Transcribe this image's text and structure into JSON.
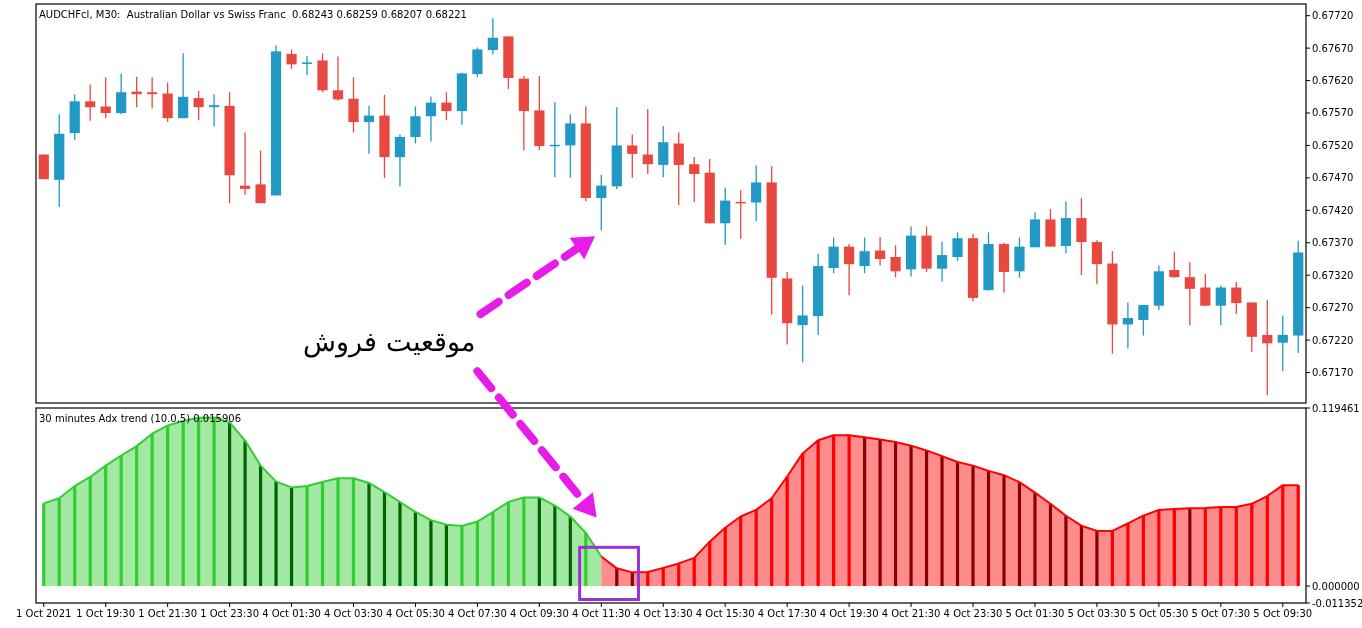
{
  "chart_data": [
    {
      "type": "candlestick",
      "title": "AUDCHFcl, M30:  Australian Dollar vs Swiss Franc  0.68243 0.68259 0.68207 0.68221",
      "categories": [
        null,
        null,
        null,
        null,
        null,
        null,
        null,
        null,
        null,
        null,
        null,
        null,
        null,
        null,
        null,
        null,
        null,
        null,
        null,
        null,
        null,
        null,
        null,
        null,
        null,
        null,
        null,
        null,
        null,
        null,
        null,
        null,
        null,
        null,
        null,
        null,
        null,
        null,
        null,
        null,
        null,
        null,
        null,
        null,
        null,
        null,
        null,
        null,
        null,
        null,
        null,
        null,
        null,
        null,
        null,
        null,
        null,
        null,
        null,
        null,
        null,
        null,
        null,
        null,
        null,
        null,
        null,
        null,
        null,
        null,
        null,
        null,
        null,
        null,
        null,
        null,
        null,
        null,
        null,
        null,
        null,
        null
      ],
      "ylim": [
        0.67123,
        0.67738
      ],
      "yticks": [
        {
          "value": 0.6772,
          "label": "0.67720"
        },
        {
          "value": 0.6767,
          "label": "0.67670"
        },
        {
          "value": 0.6762,
          "label": "0.67620"
        },
        {
          "value": 0.6757,
          "label": "0.67570"
        },
        {
          "value": 0.6752,
          "label": "0.67520"
        },
        {
          "value": 0.6747,
          "label": "0.67470"
        },
        {
          "value": 0.6742,
          "label": "0.67420"
        },
        {
          "value": 0.6737,
          "label": "0.67370"
        },
        {
          "value": 0.6732,
          "label": "0.67320"
        },
        {
          "value": 0.6727,
          "label": "0.67270"
        },
        {
          "value": 0.6722,
          "label": "0.67220"
        },
        {
          "value": 0.6717,
          "label": "0.67170"
        }
      ],
      "ohlc": [
        [
          0.67506,
          0.67506,
          0.67468,
          0.67468
        ],
        [
          0.67467,
          0.67568,
          0.67425,
          0.67538
        ],
        [
          0.67539,
          0.67599,
          0.67528,
          0.67588
        ],
        [
          0.67588,
          0.67614,
          0.67558,
          0.67579
        ],
        [
          0.6758,
          0.67625,
          0.67562,
          0.6757
        ],
        [
          0.6757,
          0.67631,
          0.67568,
          0.67602
        ],
        [
          0.67603,
          0.67626,
          0.67579,
          0.67599
        ],
        [
          0.67602,
          0.67625,
          0.67577,
          0.67599
        ],
        [
          0.676,
          0.67617,
          0.67556,
          0.67562
        ],
        [
          0.67562,
          0.67662,
          0.67562,
          0.67595
        ],
        [
          0.67593,
          0.67604,
          0.67559,
          0.67579
        ],
        [
          0.67579,
          0.67599,
          0.67549,
          0.67582
        ],
        [
          0.67581,
          0.67602,
          0.67431,
          0.67474
        ],
        [
          0.67458,
          0.6754,
          0.67444,
          0.67453
        ],
        [
          0.6746,
          0.67512,
          0.67431,
          0.67431
        ],
        [
          0.67443,
          0.67674,
          0.67443,
          0.67665
        ],
        [
          0.67661,
          0.67668,
          0.67638,
          0.67645
        ],
        [
          0.67647,
          0.67658,
          0.67628,
          0.67648
        ],
        [
          0.67651,
          0.67662,
          0.67602,
          0.67605
        ],
        [
          0.67605,
          0.67657,
          0.67589,
          0.67591
        ],
        [
          0.67592,
          0.67625,
          0.6754,
          0.67556
        ],
        [
          0.67556,
          0.67581,
          0.67507,
          0.67566
        ],
        [
          0.67566,
          0.67598,
          0.6747,
          0.67502
        ],
        [
          0.67502,
          0.67537,
          0.67457,
          0.67533
        ],
        [
          0.67533,
          0.6758,
          0.67523,
          0.67565
        ],
        [
          0.67565,
          0.67595,
          0.67526,
          0.67586
        ],
        [
          0.67586,
          0.67602,
          0.67559,
          0.67573
        ],
        [
          0.67573,
          0.67632,
          0.67552,
          0.67631
        ],
        [
          0.6763,
          0.67671,
          0.67625,
          0.67668
        ],
        [
          0.67667,
          0.67716,
          0.6766,
          0.67686
        ],
        [
          0.67688,
          0.67688,
          0.67607,
          0.67624
        ],
        [
          0.67623,
          0.67627,
          0.67512,
          0.67573
        ],
        [
          0.67574,
          0.67627,
          0.67513,
          0.67519
        ],
        [
          0.6752,
          0.67587,
          0.67471,
          0.67521
        ],
        [
          0.6752,
          0.67568,
          0.6747,
          0.67554
        ],
        [
          0.67554,
          0.6758,
          0.67434,
          0.67439
        ],
        [
          0.67439,
          0.67475,
          0.67389,
          0.67458
        ],
        [
          0.67457,
          0.67579,
          0.67453,
          0.6752
        ],
        [
          0.6752,
          0.67537,
          0.6747,
          0.67507
        ],
        [
          0.67506,
          0.67576,
          0.67476,
          0.67491
        ],
        [
          0.6749,
          0.6755,
          0.67471,
          0.67525
        ],
        [
          0.67523,
          0.6754,
          0.67428,
          0.6749
        ],
        [
          0.67491,
          0.67502,
          0.67433,
          0.67476
        ],
        [
          0.67478,
          0.67499,
          0.674,
          0.674
        ],
        [
          0.674,
          0.67455,
          0.67367,
          0.67435
        ],
        [
          0.67433,
          0.67451,
          0.67376,
          0.67432
        ],
        [
          0.67432,
          0.67489,
          0.67403,
          0.67463
        ],
        [
          0.67463,
          0.67488,
          0.67259,
          0.67316
        ],
        [
          0.67315,
          0.67325,
          0.67213,
          0.67246
        ],
        [
          0.67243,
          0.67304,
          0.67186,
          0.67258
        ],
        [
          0.67257,
          0.67353,
          0.67228,
          0.67334
        ],
        [
          0.67331,
          0.67378,
          0.67323,
          0.67364
        ],
        [
          0.67364,
          0.67368,
          0.67289,
          0.67337
        ],
        [
          0.67334,
          0.67378,
          0.67323,
          0.67357
        ],
        [
          0.67358,
          0.67379,
          0.67335,
          0.67345
        ],
        [
          0.67348,
          0.67366,
          0.67317,
          0.67326
        ],
        [
          0.67329,
          0.67395,
          0.67318,
          0.67381
        ],
        [
          0.67381,
          0.67395,
          0.67325,
          0.6733
        ],
        [
          0.6733,
          0.67372,
          0.6731,
          0.67351
        ],
        [
          0.67348,
          0.67386,
          0.67342,
          0.67377
        ],
        [
          0.67377,
          0.67384,
          0.6728,
          0.67285
        ],
        [
          0.67297,
          0.67386,
          0.67296,
          0.67368
        ],
        [
          0.67368,
          0.6737,
          0.67293,
          0.67325
        ],
        [
          0.67326,
          0.67378,
          0.67316,
          0.67364
        ],
        [
          0.67363,
          0.67417,
          0.67363,
          0.67406
        ],
        [
          0.67406,
          0.67422,
          0.67364,
          0.67364
        ],
        [
          0.67365,
          0.67434,
          0.67354,
          0.67408
        ],
        [
          0.67408,
          0.67439,
          0.6732,
          0.67371
        ],
        [
          0.67371,
          0.67374,
          0.67306,
          0.67337
        ],
        [
          0.67338,
          0.67357,
          0.67199,
          0.67244
        ],
        [
          0.67244,
          0.67278,
          0.67207,
          0.67254
        ],
        [
          0.67251,
          0.67274,
          0.67227,
          0.67274
        ],
        [
          0.67273,
          0.67335,
          0.67266,
          0.67326
        ],
        [
          0.67328,
          0.67356,
          0.67316,
          0.67317
        ],
        [
          0.67317,
          0.6734,
          0.67243,
          0.67299
        ],
        [
          0.67301,
          0.67322,
          0.67273,
          0.67273
        ],
        [
          0.67273,
          0.67304,
          0.67243,
          0.67301
        ],
        [
          0.67301,
          0.6731,
          0.6726,
          0.67277
        ],
        [
          0.67278,
          0.67278,
          0.67202,
          0.67225
        ],
        [
          0.67228,
          0.67282,
          0.67135,
          0.67215
        ],
        [
          0.67216,
          0.67258,
          0.67172,
          0.67228
        ],
        [
          0.67227,
          0.67373,
          0.672,
          0.67355
        ]
      ],
      "colors": [
        "#e8483f",
        "#2199c4",
        "#2199c4",
        "#e8483f",
        "#e8483f",
        "#2199c4",
        "#e8483f",
        "#e8483f",
        "#e8483f",
        "#2199c4",
        "#e8483f",
        "#2199c4",
        "#e8483f",
        "#e8483f",
        "#e8483f",
        "#2199c4",
        "#e8483f",
        "#2199c4",
        "#e8483f",
        "#e8483f",
        "#e8483f",
        "#2199c4",
        "#e8483f",
        "#2199c4",
        "#2199c4",
        "#2199c4",
        "#e8483f",
        "#2199c4",
        "#2199c4",
        "#2199c4",
        "#e8483f",
        "#e8483f",
        "#e8483f",
        "#2199c4",
        "#2199c4",
        "#e8483f",
        "#2199c4",
        "#2199c4",
        "#e8483f",
        "#e8483f",
        "#2199c4",
        "#e8483f",
        "#e8483f",
        "#e8483f",
        "#2199c4",
        "#e8483f",
        "#2199c4",
        "#e8483f",
        "#e8483f",
        "#2199c4",
        "#2199c4",
        "#2199c4",
        "#e8483f",
        "#2199c4",
        "#e8483f",
        "#e8483f",
        "#2199c4",
        "#e8483f",
        "#2199c4",
        "#2199c4",
        "#e8483f",
        "#2199c4",
        "#e8483f",
        "#2199c4",
        "#2199c4",
        "#e8483f",
        "#2199c4",
        "#e8483f",
        "#e8483f",
        "#e8483f",
        "#2199c4",
        "#2199c4",
        "#2199c4",
        "#e8483f",
        "#e8483f",
        "#e8483f",
        "#2199c4",
        "#e8483f",
        "#e8483f",
        "#e8483f",
        "#2199c4",
        "#2199c4"
      ],
      "annotations": [
        "موقعیت فروش"
      ]
    },
    {
      "type": "bar",
      "title": "30 minutes Adx trend (10.0,5) 0.015906",
      "categories": [
        "1 Oct 2021",
        null,
        null,
        null,
        "1 Oct 19:30",
        null,
        null,
        null,
        "1 Oct 21:30",
        null,
        null,
        null,
        "1 Oct 23:30",
        null,
        null,
        null,
        "4 Oct 01:30",
        null,
        null,
        null,
        "4 Oct 03:30",
        null,
        null,
        null,
        "4 Oct 05:30",
        null,
        null,
        null,
        "4 Oct 07:30",
        null,
        null,
        null,
        "4 Oct 09:30",
        null,
        null,
        null,
        "4 Oct 11:30",
        null,
        null,
        null,
        "4 Oct 13:30",
        null,
        null,
        null,
        "4 Oct 15:30",
        null,
        null,
        null,
        "4 Oct 17:30",
        null,
        null,
        null,
        "4 Oct 19:30",
        null,
        null,
        null,
        "4 Oct 21:30",
        null,
        null,
        null,
        "4 Oct 23:30",
        null,
        null,
        null,
        "5 Oct 01:30",
        null,
        null,
        null,
        "5 Oct 03:30",
        null,
        null,
        null,
        "5 Oct 05:30",
        null,
        null,
        null,
        "5 Oct 07:30",
        null,
        null,
        null,
        "5 Oct 09:30",
        null
      ],
      "ylim": [
        -0.011352,
        0.119461
      ],
      "yticks": [
        0.119461,
        {
          "value": 0,
          "label": "0.000000"
        },
        -0.011352
      ],
      "series": [
        {
          "type": "area",
          "color": "#32cd32",
          "values": [
            0.0555,
            0.0589,
            0.0671,
            0.0732,
            0.0808,
            0.0876,
            0.0939,
            0.1022,
            0.1077,
            0.1107,
            0.1129,
            0.1131,
            0.1098,
            0.0976,
            0.0808,
            0.0701,
            0.0662,
            0.0671,
            0.0698,
            0.0723,
            0.0723,
            0.0692,
            0.0631,
            0.0564,
            0.0497,
            0.0442,
            0.0412,
            0.0403,
            0.0433,
            0.0497,
            0.0564,
            0.0595,
            0.0595,
            0.054,
            0.0467,
            0.0357,
            0.0198,
            null,
            null,
            null,
            null,
            null,
            null,
            null,
            null,
            null,
            null,
            null,
            null,
            null,
            null,
            null,
            null,
            null,
            null,
            null,
            null,
            null,
            null,
            null,
            null,
            null,
            null,
            null,
            null,
            null,
            null,
            null,
            null,
            null,
            null,
            null,
            null,
            null,
            null,
            null,
            null,
            null,
            null,
            null,
            null,
            null
          ]
        },
        {
          "type": "area",
          "color": "#ff0000",
          "values": [
            null,
            null,
            null,
            null,
            null,
            null,
            null,
            null,
            null,
            null,
            null,
            null,
            null,
            null,
            null,
            null,
            null,
            null,
            null,
            null,
            null,
            null,
            null,
            null,
            null,
            null,
            null,
            null,
            null,
            null,
            null,
            null,
            null,
            null,
            null,
            null,
            0.0198,
            0.0119,
            0.0092,
            0.0095,
            0.0122,
            0.0152,
            0.0189,
            0.0298,
            0.0391,
            0.0467,
            0.0511,
            0.0589,
            0.0735,
            0.089,
            0.0978,
            0.1012,
            0.1012,
            0.0998,
            0.0983,
            0.0966,
            0.0942,
            0.091,
            0.0872,
            0.0832,
            0.0808,
            0.0773,
            0.0744,
            0.0697,
            0.0627,
            0.0552,
            0.0472,
            0.0405,
            0.037,
            0.037,
            0.042,
            0.0472,
            0.0511,
            0.0517,
            0.0522,
            0.0524,
            0.0531,
            0.0531,
            0.0552,
            0.0604,
            0.0677,
            0.0677
          ]
        },
        {
          "type": "bar",
          "values": [
            0.0555,
            0.0589,
            0.0671,
            0.0732,
            0.0808,
            0.0876,
            0.0939,
            0.1022,
            0.1077,
            0.1107,
            0.1129,
            0.1131,
            0.1098,
            0.0976,
            0.0808,
            0.0701,
            0.0662,
            0.0671,
            0.0698,
            0.0723,
            0.0723,
            0.0692,
            0.0631,
            0.0564,
            0.0497,
            0.0442,
            0.0412,
            0.0403,
            0.0433,
            0.0497,
            0.0564,
            0.0595,
            0.0595,
            0.054,
            0.0467,
            0.0357,
            null,
            0.0119,
            0.0092,
            0.0095,
            0.0122,
            0.0152,
            0.0189,
            0.0298,
            0.0391,
            0.0467,
            0.0511,
            0.0589,
            0.0735,
            0.089,
            0.0978,
            0.1012,
            0.1012,
            0.0998,
            0.0983,
            0.0966,
            0.0942,
            0.091,
            0.0872,
            0.0832,
            0.0808,
            0.0773,
            0.0744,
            0.0697,
            0.0627,
            0.0552,
            0.0472,
            0.0405,
            0.037,
            0.037,
            0.042,
            0.0472,
            0.0511,
            0.0517,
            0.0522,
            0.0524,
            0.0531,
            0.0531,
            0.0552,
            0.0604,
            0.0677,
            0.0677
          ],
          "colors": [
            "#32cd32",
            "#32cd32",
            "#32cd32",
            "#32cd32",
            "#32cd32",
            "#32cd32",
            "#32cd32",
            "#32cd32",
            "#32cd32",
            "#32cd32",
            "#32cd32",
            "#32cd32",
            "#006400",
            "#006400",
            "#006400",
            "#006400",
            "#006400",
            "#32cd32",
            "#32cd32",
            "#32cd32",
            "#32cd32",
            "#006400",
            "#006400",
            "#006400",
            "#006400",
            "#006400",
            "#006400",
            "#32cd32",
            "#32cd32",
            "#32cd32",
            "#32cd32",
            "#32cd32",
            "#006400",
            "#006400",
            "#006400",
            "#32cd32",
            null,
            "#8b0000",
            "#8b0000",
            "#ff0000",
            "#ff0000",
            "#ff0000",
            "#ff0000",
            "#ff0000",
            "#ff0000",
            "#ff0000",
            "#ff0000",
            "#ff0000",
            "#ff0000",
            "#ff0000",
            "#ff0000",
            "#ff0000",
            "#ff0000",
            "#8b0000",
            "#8b0000",
            "#8b0000",
            "#8b0000",
            "#8b0000",
            "#8b0000",
            "#8b0000",
            "#8b0000",
            "#8b0000",
            "#8b0000",
            "#8b0000",
            "#8b0000",
            "#8b0000",
            "#8b0000",
            "#8b0000",
            "#8b0000",
            "#ff0000",
            "#ff0000",
            "#ff0000",
            "#ff0000",
            "#ff0000",
            "#8b0000",
            "#ff0000",
            "#ff0000",
            "#ff0000",
            "#ff0000",
            "#ff0000",
            "#ff0000",
            "#ff0000"
          ]
        }
      ]
    }
  ]
}
